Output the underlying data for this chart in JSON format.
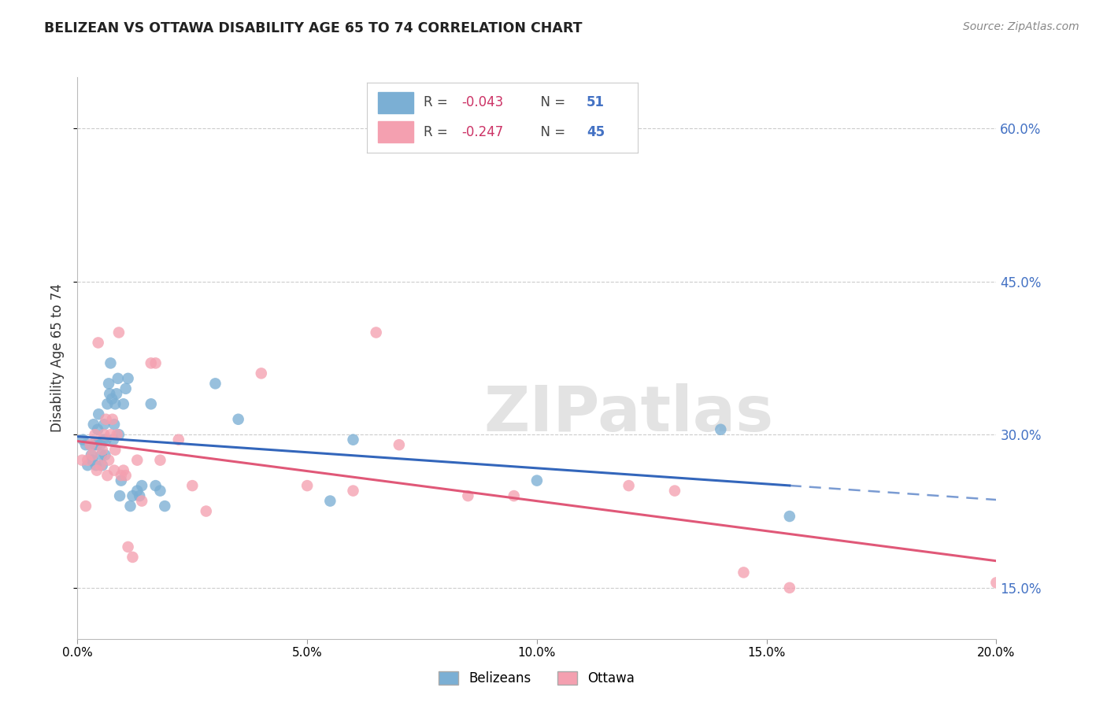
{
  "title": "BELIZEAN VS OTTAWA DISABILITY AGE 65 TO 74 CORRELATION CHART",
  "source": "Source: ZipAtlas.com",
  "ylabel": "Disability Age 65 to 74",
  "xmin": 0.0,
  "xmax": 0.2,
  "ymin": 0.1,
  "ymax": 0.65,
  "belizean_R": -0.043,
  "belizean_N": 51,
  "ottawa_R": -0.247,
  "ottawa_N": 45,
  "belizean_color": "#7bafd4",
  "ottawa_color": "#f4a0b0",
  "belizean_line_color": "#3366bb",
  "ottawa_line_color": "#e05878",
  "watermark_text": "ZIPatlas",
  "belizean_x": [
    0.0012,
    0.0018,
    0.0022,
    0.0028,
    0.003,
    0.0032,
    0.0035,
    0.0038,
    0.004,
    0.0042,
    0.0044,
    0.0046,
    0.005,
    0.0052,
    0.0054,
    0.0056,
    0.0058,
    0.006,
    0.0062,
    0.0065,
    0.0068,
    0.007,
    0.0072,
    0.0075,
    0.0078,
    0.008,
    0.0082,
    0.0085,
    0.0088,
    0.009,
    0.0092,
    0.0095,
    0.01,
    0.0105,
    0.011,
    0.0115,
    0.012,
    0.013,
    0.0135,
    0.014,
    0.016,
    0.017,
    0.018,
    0.019,
    0.03,
    0.035,
    0.055,
    0.06,
    0.1,
    0.14,
    0.155
  ],
  "belizean_y": [
    0.295,
    0.29,
    0.27,
    0.29,
    0.28,
    0.275,
    0.31,
    0.29,
    0.27,
    0.29,
    0.305,
    0.32,
    0.29,
    0.28,
    0.27,
    0.295,
    0.31,
    0.28,
    0.295,
    0.33,
    0.35,
    0.34,
    0.37,
    0.335,
    0.295,
    0.31,
    0.33,
    0.34,
    0.355,
    0.3,
    0.24,
    0.255,
    0.33,
    0.345,
    0.355,
    0.23,
    0.24,
    0.245,
    0.24,
    0.25,
    0.33,
    0.25,
    0.245,
    0.23,
    0.35,
    0.315,
    0.235,
    0.295,
    0.255,
    0.305,
    0.22
  ],
  "ottawa_x": [
    0.001,
    0.0018,
    0.0022,
    0.0028,
    0.0032,
    0.0038,
    0.0042,
    0.0045,
    0.005,
    0.0054,
    0.0058,
    0.0062,
    0.0065,
    0.0068,
    0.0072,
    0.0076,
    0.008,
    0.0082,
    0.0086,
    0.009,
    0.0095,
    0.01,
    0.0105,
    0.011,
    0.012,
    0.013,
    0.014,
    0.016,
    0.017,
    0.018,
    0.022,
    0.025,
    0.028,
    0.04,
    0.05,
    0.06,
    0.065,
    0.07,
    0.085,
    0.095,
    0.12,
    0.13,
    0.145,
    0.155,
    0.2
  ],
  "ottawa_y": [
    0.275,
    0.23,
    0.275,
    0.29,
    0.28,
    0.3,
    0.265,
    0.39,
    0.27,
    0.285,
    0.3,
    0.315,
    0.26,
    0.275,
    0.3,
    0.315,
    0.265,
    0.285,
    0.3,
    0.4,
    0.26,
    0.265,
    0.26,
    0.19,
    0.18,
    0.275,
    0.235,
    0.37,
    0.37,
    0.275,
    0.295,
    0.25,
    0.225,
    0.36,
    0.25,
    0.245,
    0.4,
    0.29,
    0.24,
    0.24,
    0.25,
    0.245,
    0.165,
    0.15,
    0.155
  ]
}
